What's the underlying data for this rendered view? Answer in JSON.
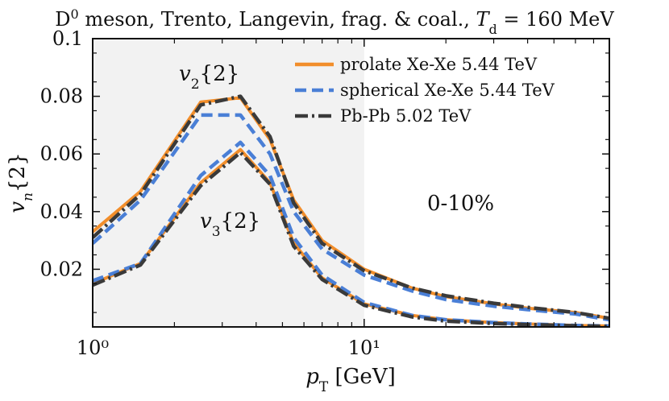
{
  "chart_data": {
    "type": "line",
    "title": "D⁰ meson, Trento, Langevin, frag. & coal., T_d = 160 MeV",
    "xlabel": "p_T [GeV]",
    "ylabel": "v_n{2}",
    "xscale": "log",
    "xlim": [
      1,
      80
    ],
    "ylim": [
      0,
      0.1
    ],
    "grid": false,
    "legend_position": "top-right",
    "shaded_region": {
      "x_from": 1,
      "x_to": 10,
      "color": "#f2f2f2"
    },
    "x_ticks": [
      {
        "value": 1,
        "label": "10⁰"
      },
      {
        "value": 10,
        "label": "10¹"
      }
    ],
    "y_ticks": [
      0.02,
      0.04,
      0.06,
      0.08,
      0.1
    ],
    "y_tick_labels": [
      "0.02",
      "0.04",
      "0.06",
      "0.08",
      "0.1"
    ],
    "annotations": {
      "v2": "v₂{2}",
      "v3": "v₃{2}",
      "centrality": "0-10%"
    },
    "series": [
      {
        "name": "prolate Xe-Xe 5.44 TeV",
        "harmonic": "v2",
        "color": "#f28e2b",
        "style": "solid",
        "x": [
          1,
          1.5,
          2.5,
          3.5,
          4.5,
          5.5,
          7,
          10,
          15,
          20,
          30,
          40,
          60,
          80
        ],
        "y": [
          0.033,
          0.047,
          0.078,
          0.0795,
          0.065,
          0.044,
          0.03,
          0.02,
          0.0135,
          0.0105,
          0.008,
          0.0065,
          0.005,
          0.003
        ]
      },
      {
        "name": "spherical Xe-Xe 5.44 TeV",
        "harmonic": "v2",
        "color": "#4a7fd6",
        "style": "dashed",
        "x": [
          1,
          1.5,
          2.5,
          3.5,
          4.5,
          5.5,
          7,
          10,
          15,
          20,
          30,
          40,
          60,
          80
        ],
        "y": [
          0.029,
          0.044,
          0.0735,
          0.0735,
          0.06,
          0.04,
          0.027,
          0.018,
          0.0125,
          0.0095,
          0.0072,
          0.006,
          0.0045,
          0.0025
        ]
      },
      {
        "name": "Pb-Pb 5.02 TeV",
        "harmonic": "v2",
        "color": "#3a3a3a",
        "style": "dashdot",
        "x": [
          1,
          1.5,
          2.5,
          3.5,
          4.5,
          5.5,
          7,
          10,
          15,
          20,
          30,
          40,
          60,
          80
        ],
        "y": [
          0.031,
          0.046,
          0.077,
          0.08,
          0.066,
          0.043,
          0.029,
          0.0195,
          0.0135,
          0.0108,
          0.0082,
          0.0068,
          0.005,
          0.003
        ]
      },
      {
        "name": "prolate Xe-Xe 5.44 TeV",
        "harmonic": "v3",
        "color": "#f28e2b",
        "style": "solid",
        "x": [
          1,
          1.5,
          2.5,
          3.5,
          4.5,
          5.5,
          7,
          10,
          15,
          20,
          30,
          40,
          60,
          80
        ],
        "y": [
          0.015,
          0.022,
          0.05,
          0.0615,
          0.05,
          0.029,
          0.017,
          0.008,
          0.004,
          0.0025,
          0.0015,
          0.001,
          0.0005,
          0.0003
        ]
      },
      {
        "name": "spherical Xe-Xe 5.44 TeV",
        "harmonic": "v3",
        "color": "#4a7fd6",
        "style": "dashed",
        "x": [
          1,
          1.5,
          2.5,
          3.5,
          4.5,
          5.5,
          7,
          10,
          15,
          20,
          30,
          40,
          60,
          80
        ],
        "y": [
          0.016,
          0.022,
          0.0525,
          0.064,
          0.0525,
          0.031,
          0.018,
          0.0085,
          0.004,
          0.0025,
          0.0015,
          0.001,
          0.0005,
          0.0003
        ]
      },
      {
        "name": "Pb-Pb 5.02 TeV",
        "harmonic": "v3",
        "color": "#3a3a3a",
        "style": "dashdot",
        "x": [
          1,
          1.5,
          2.5,
          3.5,
          4.5,
          5.5,
          7,
          10,
          15,
          20,
          30,
          40,
          60,
          80
        ],
        "y": [
          0.0145,
          0.0215,
          0.049,
          0.0605,
          0.0495,
          0.028,
          0.0165,
          0.0075,
          0.0035,
          0.002,
          0.0012,
          0.0008,
          0.0004,
          0.0002
        ]
      }
    ]
  }
}
